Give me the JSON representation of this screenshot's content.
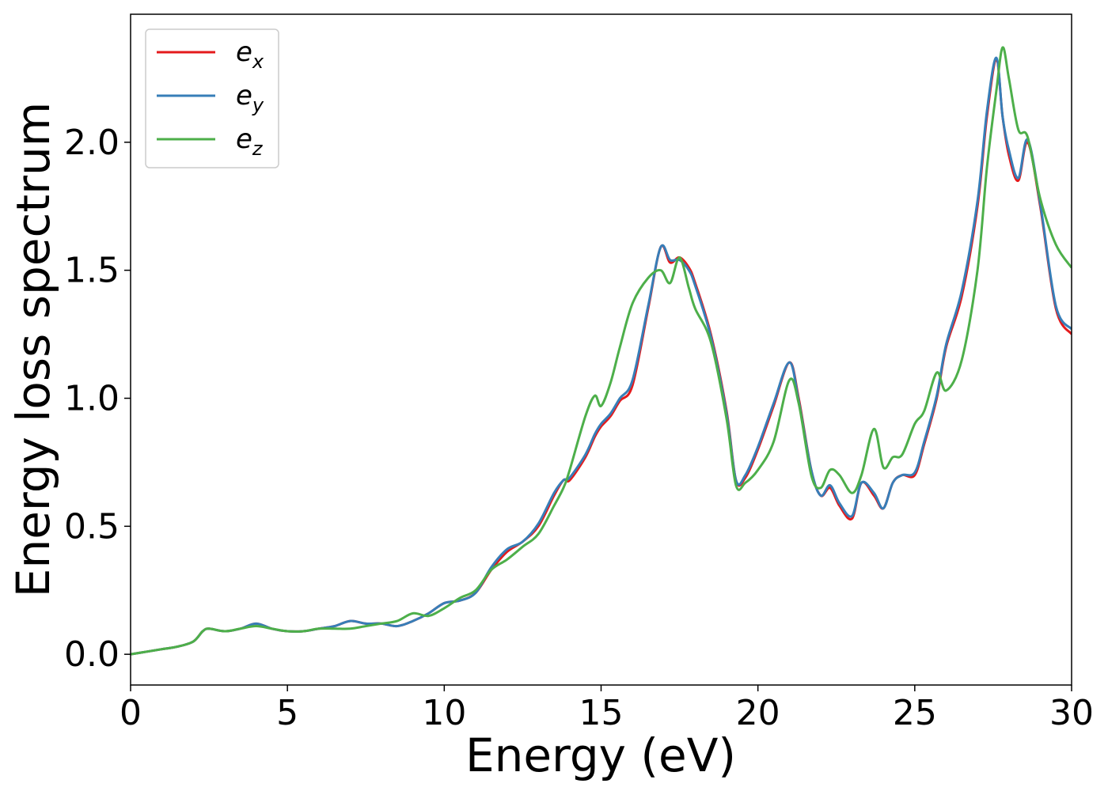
{
  "chart_data": {
    "type": "line",
    "xlabel": "Energy (eV)",
    "ylabel": "Energy loss spectrum",
    "xlim": [
      0,
      30
    ],
    "ylim": [
      -0.12,
      2.5
    ],
    "xticks": [
      0,
      5,
      10,
      15,
      20,
      25,
      30
    ],
    "xtick_labels": [
      "0",
      "5",
      "10",
      "15",
      "20",
      "25",
      "30"
    ],
    "yticks": [
      0.0,
      0.5,
      1.0,
      1.5,
      2.0
    ],
    "ytick_labels": [
      "0.0",
      "0.5",
      "1.0",
      "1.5",
      "2.0"
    ],
    "grid": false,
    "legend": {
      "position": "top-left"
    },
    "series": [
      {
        "name": "ex",
        "label_base": "e",
        "label_sub": "x",
        "color": "#e41a1c",
        "x": [
          0,
          0.5,
          1,
          1.5,
          2,
          2.3,
          2.5,
          3,
          3.5,
          4,
          4.5,
          5,
          5.5,
          6,
          6.5,
          7,
          7.5,
          8,
          8.5,
          9,
          9.5,
          10,
          10.5,
          11,
          11.5,
          12,
          12.5,
          13,
          13.5,
          13.8,
          14,
          14.5,
          14.8,
          15,
          15.3,
          15.6,
          16,
          16.5,
          16.9,
          17.2,
          17.5,
          17.8,
          18,
          18.5,
          19,
          19.3,
          19.6,
          20,
          20.5,
          21,
          21.3,
          21.7,
          22,
          22.3,
          22.6,
          23,
          23.3,
          23.7,
          24,
          24.3,
          24.6,
          25,
          25.3,
          25.7,
          26,
          26.5,
          27,
          27.3,
          27.6,
          27.8,
          28,
          28.3,
          28.6,
          29,
          29.5,
          30
        ],
        "y": [
          0.0,
          0.01,
          0.02,
          0.03,
          0.05,
          0.09,
          0.1,
          0.09,
          0.1,
          0.12,
          0.1,
          0.09,
          0.09,
          0.1,
          0.11,
          0.13,
          0.12,
          0.12,
          0.11,
          0.13,
          0.16,
          0.2,
          0.21,
          0.24,
          0.33,
          0.4,
          0.44,
          0.5,
          0.62,
          0.68,
          0.68,
          0.77,
          0.85,
          0.89,
          0.93,
          0.99,
          1.05,
          1.35,
          1.59,
          1.53,
          1.55,
          1.51,
          1.45,
          1.25,
          0.95,
          0.68,
          0.69,
          0.8,
          0.97,
          1.14,
          1.0,
          0.72,
          0.62,
          0.65,
          0.58,
          0.53,
          0.67,
          0.62,
          0.57,
          0.67,
          0.7,
          0.7,
          0.82,
          1.0,
          1.2,
          1.4,
          1.75,
          2.1,
          2.32,
          2.1,
          1.95,
          1.85,
          2.0,
          1.75,
          1.35,
          1.25
        ]
      },
      {
        "name": "ey",
        "label_base": "e",
        "label_sub": "y",
        "color": "#377eb8",
        "x": [
          0,
          0.5,
          1,
          1.5,
          2,
          2.3,
          2.5,
          3,
          3.5,
          4,
          4.5,
          5,
          5.5,
          6,
          6.5,
          7,
          7.5,
          8,
          8.5,
          9,
          9.5,
          10,
          10.5,
          11,
          11.5,
          12,
          12.5,
          13,
          13.5,
          13.8,
          14,
          14.5,
          14.8,
          15,
          15.3,
          15.6,
          16,
          16.5,
          16.9,
          17.2,
          17.5,
          17.8,
          18,
          18.5,
          19,
          19.3,
          19.6,
          20,
          20.5,
          21,
          21.3,
          21.7,
          22,
          22.3,
          22.6,
          23,
          23.3,
          23.7,
          24,
          24.3,
          24.6,
          25,
          25.3,
          25.7,
          26,
          26.5,
          27,
          27.3,
          27.6,
          27.8,
          28,
          28.3,
          28.6,
          29,
          29.5,
          30
        ],
        "y": [
          0.0,
          0.01,
          0.02,
          0.03,
          0.05,
          0.09,
          0.1,
          0.09,
          0.1,
          0.12,
          0.1,
          0.09,
          0.09,
          0.1,
          0.11,
          0.13,
          0.12,
          0.12,
          0.11,
          0.13,
          0.16,
          0.2,
          0.21,
          0.24,
          0.34,
          0.41,
          0.44,
          0.51,
          0.63,
          0.68,
          0.69,
          0.78,
          0.86,
          0.9,
          0.94,
          1.0,
          1.07,
          1.36,
          1.59,
          1.54,
          1.54,
          1.5,
          1.44,
          1.24,
          0.94,
          0.68,
          0.7,
          0.81,
          0.98,
          1.14,
          0.99,
          0.72,
          0.62,
          0.66,
          0.59,
          0.54,
          0.67,
          0.63,
          0.57,
          0.67,
          0.7,
          0.71,
          0.83,
          1.01,
          1.21,
          1.42,
          1.77,
          2.12,
          2.33,
          2.1,
          1.97,
          1.86,
          2.01,
          1.76,
          1.36,
          1.27
        ]
      },
      {
        "name": "ez",
        "label_base": "e",
        "label_sub": "z",
        "color": "#4daf4a",
        "x": [
          0,
          0.5,
          1,
          1.5,
          2,
          2.3,
          2.5,
          3,
          3.5,
          4,
          4.5,
          5,
          5.5,
          6,
          6.5,
          7,
          7.5,
          8,
          8.5,
          9,
          9.5,
          10,
          10.5,
          11,
          11.5,
          12,
          12.5,
          13,
          13.5,
          13.8,
          14,
          14.5,
          14.8,
          15,
          15.3,
          15.6,
          16,
          16.5,
          16.9,
          17.2,
          17.5,
          17.8,
          18,
          18.5,
          19,
          19.3,
          19.6,
          20,
          20.5,
          21,
          21.3,
          21.7,
          22,
          22.3,
          22.6,
          23,
          23.3,
          23.7,
          24,
          24.3,
          24.6,
          25,
          25.3,
          25.7,
          26,
          26.5,
          27,
          27.3,
          27.6,
          27.8,
          28,
          28.3,
          28.6,
          29,
          29.5,
          30
        ],
        "y": [
          0.0,
          0.01,
          0.02,
          0.03,
          0.05,
          0.09,
          0.1,
          0.09,
          0.1,
          0.11,
          0.1,
          0.09,
          0.09,
          0.1,
          0.1,
          0.1,
          0.11,
          0.12,
          0.13,
          0.16,
          0.15,
          0.18,
          0.22,
          0.25,
          0.33,
          0.37,
          0.42,
          0.47,
          0.58,
          0.65,
          0.72,
          0.93,
          1.01,
          0.97,
          1.06,
          1.2,
          1.37,
          1.47,
          1.5,
          1.45,
          1.55,
          1.43,
          1.35,
          1.22,
          0.92,
          0.66,
          0.67,
          0.72,
          0.83,
          1.07,
          0.98,
          0.7,
          0.65,
          0.72,
          0.7,
          0.63,
          0.7,
          0.88,
          0.73,
          0.77,
          0.78,
          0.9,
          0.95,
          1.1,
          1.03,
          1.15,
          1.5,
          1.9,
          2.2,
          2.37,
          2.25,
          2.05,
          2.02,
          1.78,
          1.6,
          1.51
        ]
      }
    ]
  }
}
